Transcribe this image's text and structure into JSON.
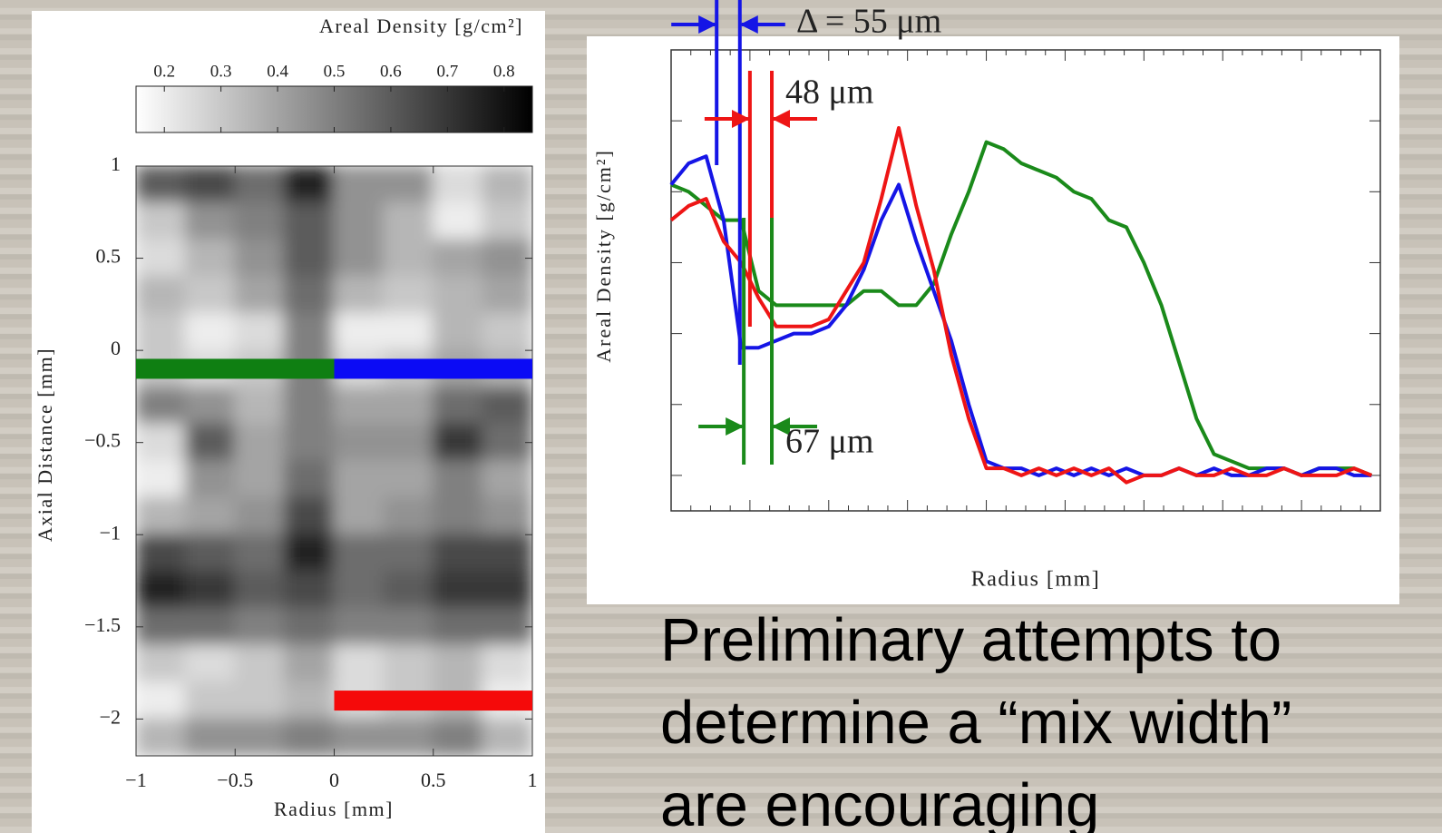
{
  "body_text": "Preliminary attempts to determine a “mix width” are encouraging",
  "chart_data": [
    {
      "type": "heatmap",
      "xlabel": "Radius [mm]",
      "ylabel": "Axial Distance [mm]",
      "xlim": [
        -1,
        1
      ],
      "ylim": [
        -2.2,
        1
      ],
      "xticks": [
        {
          "value": -1,
          "label": "−1"
        },
        {
          "value": -0.5,
          "label": "−0.5"
        },
        0,
        0.5,
        1
      ],
      "yticks": [
        1,
        0.5,
        0,
        {
          "value": -0.5,
          "label": "−0.5"
        },
        {
          "value": -1,
          "label": "−1"
        },
        {
          "value": -1.5,
          "label": "−1.5"
        },
        {
          "value": -2,
          "label": "−2"
        }
      ],
      "colorbar": {
        "label": "Areal Density [g/cm²]",
        "clim": [
          0.15,
          0.85
        ],
        "ticks": [
          0.2,
          0.3,
          0.4,
          0.5,
          0.6,
          0.7,
          0.8
        ]
      },
      "z": [
        [
          0.6,
          0.65,
          0.55,
          0.75,
          0.45,
          0.45,
          0.25,
          0.35
        ],
        [
          0.3,
          0.45,
          0.5,
          0.6,
          0.45,
          0.35,
          0.2,
          0.3
        ],
        [
          0.25,
          0.35,
          0.45,
          0.6,
          0.45,
          0.35,
          0.4,
          0.45
        ],
        [
          0.35,
          0.3,
          0.4,
          0.55,
          0.35,
          0.3,
          0.35,
          0.4
        ],
        [
          0.3,
          0.2,
          0.25,
          0.5,
          0.2,
          0.2,
          0.35,
          0.3
        ],
        [
          0.3,
          0.25,
          0.3,
          0.5,
          0.25,
          0.3,
          0.4,
          0.35
        ],
        [
          0.5,
          0.45,
          0.35,
          0.5,
          0.4,
          0.4,
          0.55,
          0.6
        ],
        [
          0.25,
          0.6,
          0.4,
          0.5,
          0.45,
          0.45,
          0.7,
          0.55
        ],
        [
          0.2,
          0.45,
          0.4,
          0.55,
          0.4,
          0.4,
          0.5,
          0.4
        ],
        [
          0.35,
          0.4,
          0.45,
          0.65,
          0.4,
          0.45,
          0.5,
          0.45
        ],
        [
          0.65,
          0.6,
          0.55,
          0.75,
          0.55,
          0.55,
          0.65,
          0.65
        ],
        [
          0.75,
          0.7,
          0.6,
          0.65,
          0.55,
          0.6,
          0.7,
          0.7
        ],
        [
          0.55,
          0.55,
          0.5,
          0.55,
          0.5,
          0.5,
          0.55,
          0.55
        ],
        [
          0.3,
          0.25,
          0.3,
          0.4,
          0.25,
          0.3,
          0.35,
          0.25
        ],
        [
          0.2,
          0.3,
          0.3,
          0.35,
          0.25,
          0.3,
          0.35,
          0.2
        ],
        [
          0.35,
          0.45,
          0.45,
          0.5,
          0.45,
          0.45,
          0.5,
          0.35
        ]
      ],
      "lineouts": [
        {
          "color": "#0f7f12",
          "x": [
            -1,
            0
          ],
          "y": -0.1
        },
        {
          "color": "#0b0bf5",
          "x": [
            0,
            1
          ],
          "y": -0.1
        },
        {
          "color": "#f50a0a",
          "x": [
            0,
            1
          ],
          "y": -1.9
        }
      ]
    },
    {
      "type": "line",
      "xlabel": "Radius [mm]",
      "ylabel": "Areal Density [g/cm²]",
      "xlim": [
        0,
        1.62
      ],
      "ylim": [
        -0.05,
        0.6
      ],
      "xticks": [
        0,
        0.18,
        0.36,
        0.54,
        0.72,
        0.9,
        1.08,
        1.26,
        1.44,
        1.62
      ],
      "yticks": [
        0,
        0.1,
        0.2,
        0.3,
        0.4,
        0.5,
        0.6
      ],
      "x": [
        0,
        0.04,
        0.08,
        0.12,
        0.16,
        0.2,
        0.24,
        0.28,
        0.32,
        0.36,
        0.4,
        0.44,
        0.48,
        0.52,
        0.56,
        0.6,
        0.64,
        0.68,
        0.72,
        0.76,
        0.8,
        0.84,
        0.88,
        0.92,
        0.96,
        1,
        1.04,
        1.08,
        1.12,
        1.16,
        1.2,
        1.24,
        1.28,
        1.32,
        1.36,
        1.4,
        1.44,
        1.48,
        1.52,
        1.56,
        1.6
      ],
      "series": [
        {
          "color": "#1a8a1a",
          "values": [
            0.41,
            0.4,
            0.38,
            0.36,
            0.36,
            0.26,
            0.24,
            0.24,
            0.24,
            0.24,
            0.24,
            0.26,
            0.26,
            0.24,
            0.24,
            0.27,
            0.34,
            0.4,
            0.47,
            0.46,
            0.44,
            0.43,
            0.42,
            0.4,
            0.39,
            0.36,
            0.35,
            0.3,
            0.24,
            0.16,
            0.08,
            0.03,
            0.02,
            0.01,
            0.01,
            0.01,
            0,
            0.01,
            0.01,
            0.01,
            0
          ]
        },
        {
          "color": "#1515e6",
          "values": [
            0.41,
            0.44,
            0.45,
            0.36,
            0.18,
            0.18,
            0.19,
            0.2,
            0.2,
            0.21,
            0.24,
            0.29,
            0.36,
            0.41,
            0.33,
            0.26,
            0.19,
            0.1,
            0.02,
            0.01,
            0.01,
            0,
            0.01,
            0,
            0.01,
            0,
            0.01,
            0,
            0,
            0.01,
            0,
            0.01,
            0,
            0,
            0.01,
            0.01,
            0,
            0.01,
            0.01,
            0,
            0
          ]
        },
        {
          "color": "#ee1515",
          "values": [
            0.36,
            0.38,
            0.39,
            0.33,
            0.3,
            0.25,
            0.21,
            0.21,
            0.21,
            0.22,
            0.26,
            0.3,
            0.39,
            0.49,
            0.38,
            0.29,
            0.17,
            0.08,
            0.01,
            0.01,
            0,
            0.01,
            0,
            0.01,
            0,
            0.01,
            -0.01,
            0,
            0,
            0.01,
            0,
            0,
            0.01,
            0,
            0,
            0.01,
            0,
            0,
            0,
            0.01,
            0
          ]
        }
      ],
      "annotations": [
        {
          "text": "Δ = 55 μm",
          "color": "#1515e6",
          "x": [
            0.104,
            0.157
          ]
        },
        {
          "text": "48 μm",
          "color": "#ee1515",
          "x": [
            0.18,
            0.23
          ]
        },
        {
          "text": "67 μm",
          "color": "#1a8a1a",
          "x": [
            0.166,
            0.23
          ]
        }
      ]
    }
  ]
}
